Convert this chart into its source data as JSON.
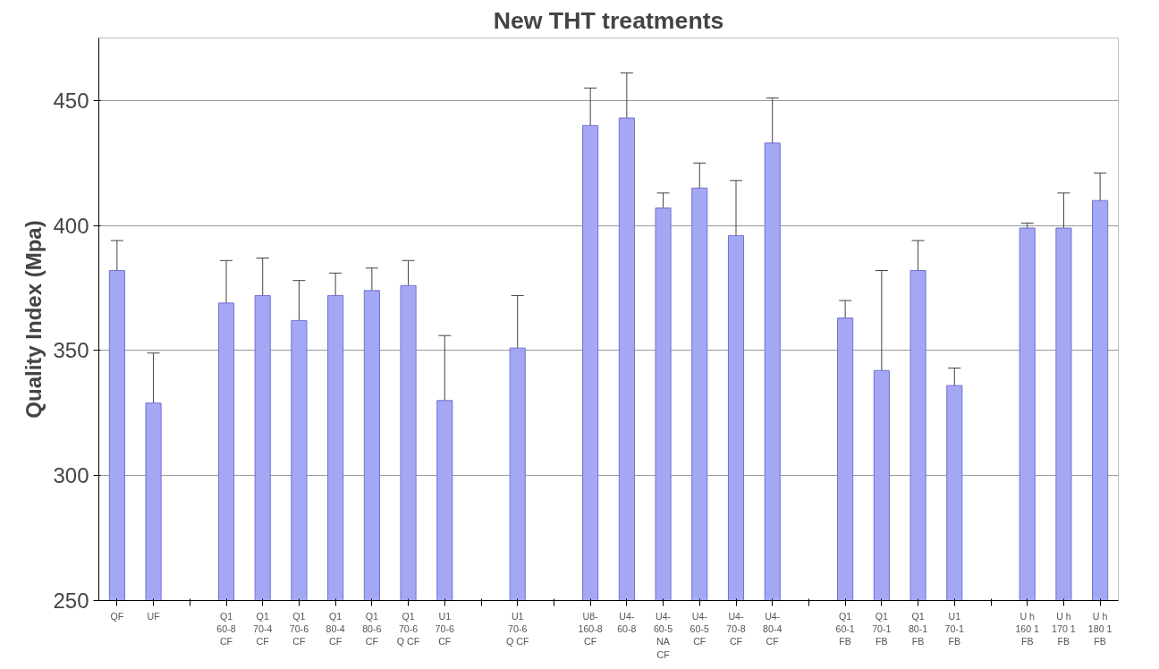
{
  "chart_data": {
    "type": "bar",
    "title": "New THT treatments",
    "ylabel": "Quality Index (Mpa)",
    "categories": [
      "QF",
      "UF",
      null,
      "Q1\n60-8\nCF",
      "Q1\n70-4\nCF",
      "Q1\n70-6\nCF",
      "Q1\n80-4\nCF",
      "Q1\n80-6\nCF",
      "Q1\n70-6\nQ CF",
      "U1\n70-6\nCF",
      null,
      "U1\n70-6\nQ CF",
      null,
      "U8-\n160-8\nCF",
      "U4-\n60-8",
      "U4-\n60-5\nNA\nCF",
      "U4-\n60-5\nCF",
      "U4-\n70-8\nCF",
      "U4-\n80-4\nCF",
      null,
      "Q1\n60-1\nFB",
      "Q1\n70-1\nFB",
      "Q1\n80-1\nFB",
      "U1\n70-1\nFB",
      null,
      "U h\n160 1\nFB",
      "U h\n170 1\nFB",
      "U h\n180 1\nFB"
    ],
    "values": [
      382,
      329,
      null,
      369,
      372,
      362,
      372,
      374,
      376,
      330,
      null,
      351,
      null,
      440,
      443,
      407,
      415,
      396,
      433,
      null,
      363,
      342,
      382,
      336,
      null,
      399,
      399,
      410
    ],
    "errors": [
      12,
      20,
      null,
      17,
      15,
      16,
      9,
      9,
      10,
      26,
      null,
      21,
      null,
      15,
      18,
      6,
      10,
      22,
      18,
      null,
      7,
      40,
      12,
      7,
      null,
      2,
      14,
      11
    ],
    "color": "#a4a8f4",
    "ylim": [
      250,
      475
    ],
    "yticks": [
      250,
      300,
      350,
      400,
      450
    ],
    "grid": "y"
  }
}
